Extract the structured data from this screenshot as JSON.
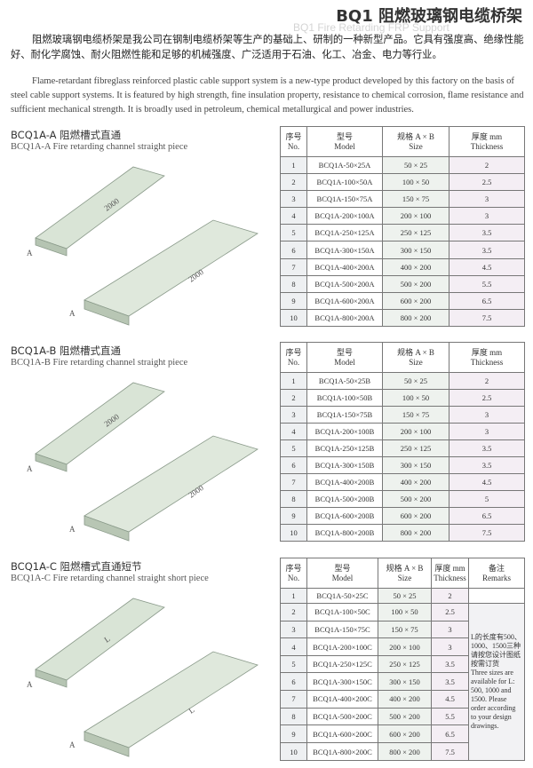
{
  "header": {
    "title": "BQ1 阻燃玻璃钢电缆桥架",
    "subtitle": "BQ1 Fire Retarding FRP Support"
  },
  "intro": {
    "zh": "阻燃玻璃钢电缆桥架是我公司在钢制电缆桥架等生产的基础上、研制的一种新型产品。它具有强度高、绝缘性能好、耐化学腐蚀、耐火阻燃性能和足够的机械强度、广泛适用于石油、化工、冶金、电力等行业。",
    "en": "Flame-retardant fibreglass reinforced plastic cable support system is a new-type product developed by this factory on the basis of steel cable support systems. It is featured by high strength, fine insulation property, resistance to chemical corrosion, flame resistance and sufficient mechanical strength. It is broadly used in petroleum, chemical metallurgical and power industries."
  },
  "sections": [
    {
      "heading": "BCQ1A-A 阻燃槽式直通",
      "heading_en": "BCQ1A-A Fire retarding channel straight piece",
      "figure": [
        "2000",
        "A",
        "2000",
        "A"
      ],
      "table": {
        "header": [
          "序号\nNo.",
          "型号\nModel",
          "规格 A × B\nSize",
          "厚度 mm\nThickness"
        ],
        "rows": [
          [
            "1",
            "BCQ1A-50×25A",
            "50 × 25",
            "2"
          ],
          [
            "2",
            "BCQ1A-100×50A",
            "100 × 50",
            "2.5"
          ],
          [
            "3",
            "BCQ1A-150×75A",
            "150 × 75",
            "3"
          ],
          [
            "4",
            "BCQ1A-200×100A",
            "200 × 100",
            "3"
          ],
          [
            "5",
            "BCQ1A-250×125A",
            "250 × 125",
            "3.5"
          ],
          [
            "6",
            "BCQ1A-300×150A",
            "300 × 150",
            "3.5"
          ],
          [
            "7",
            "BCQ1A-400×200A",
            "400 × 200",
            "4.5"
          ],
          [
            "8",
            "BCQ1A-500×200A",
            "500 × 200",
            "5.5"
          ],
          [
            "9",
            "BCQ1A-600×200A",
            "600 × 200",
            "6.5"
          ],
          [
            "10",
            "BCQ1A-800×200A",
            "800 × 200",
            "7.5"
          ]
        ]
      }
    },
    {
      "heading": "BCQ1A-B 阻燃槽式直通",
      "heading_en": "BCQ1A-B Fire retarding channel straight piece",
      "figure": [
        "2000",
        "A",
        "2000",
        "A"
      ],
      "table": {
        "header": [
          "序号\nNo.",
          "型号\nModel",
          "规格 A × B\nSize",
          "厚度 mm\nThickness"
        ],
        "rows": [
          [
            "1",
            "BCQ1A-50×25B",
            "50 × 25",
            "2"
          ],
          [
            "2",
            "BCQ1A-100×50B",
            "100 × 50",
            "2.5"
          ],
          [
            "3",
            "BCQ1A-150×75B",
            "150 × 75",
            "3"
          ],
          [
            "4",
            "BCQ1A-200×100B",
            "200 × 100",
            "3"
          ],
          [
            "5",
            "BCQ1A-250×125B",
            "250 × 125",
            "3.5"
          ],
          [
            "6",
            "BCQ1A-300×150B",
            "300 × 150",
            "3.5"
          ],
          [
            "7",
            "BCQ1A-400×200B",
            "400 × 200",
            "4.5"
          ],
          [
            "8",
            "BCQ1A-500×200B",
            "500 × 200",
            "5"
          ],
          [
            "9",
            "BCQ1A-600×200B",
            "600 × 200",
            "6.5"
          ],
          [
            "10",
            "BCQ1A-800×200B",
            "800 × 200",
            "7.5"
          ]
        ]
      }
    },
    {
      "heading": "BCQ1A-C 阻燃槽式直通短节",
      "heading_en": "BCQ1A-C Fire retarding channel straight short piece",
      "figure": [
        "L",
        "A",
        "L",
        "A"
      ],
      "table": {
        "header": [
          "序号\nNo.",
          "型号\nModel",
          "规格 A × B\nSize",
          "厚度 mm\nThickness",
          "备注\nRemarks"
        ],
        "remarks": "L的长度有500、1000、1500三种请按您设计图纸按需订货\nThree sizes are available for L: 500, 1000 and 1500. Please order according to your design drawings.",
        "rows": [
          [
            "1",
            "BCQ1A-50×25C",
            "50 × 25",
            "2"
          ],
          [
            "2",
            "BCQ1A-100×50C",
            "100 × 50",
            "2.5"
          ],
          [
            "3",
            "BCQ1A-150×75C",
            "150 × 75",
            "3"
          ],
          [
            "4",
            "BCQ1A-200×100C",
            "200 × 100",
            "3"
          ],
          [
            "5",
            "BCQ1A-250×125C",
            "250 × 125",
            "3.5"
          ],
          [
            "6",
            "BCQ1A-300×150C",
            "300 × 150",
            "3.5"
          ],
          [
            "7",
            "BCQ1A-400×200C",
            "400 × 200",
            "4.5"
          ],
          [
            "8",
            "BCQ1A-500×200C",
            "500 × 200",
            "5.5"
          ],
          [
            "9",
            "BCQ1A-600×200C",
            "600 × 200",
            "6.5"
          ],
          [
            "10",
            "BCQ1A-800×200C",
            "800 × 200",
            "7.5"
          ]
        ]
      }
    }
  ]
}
